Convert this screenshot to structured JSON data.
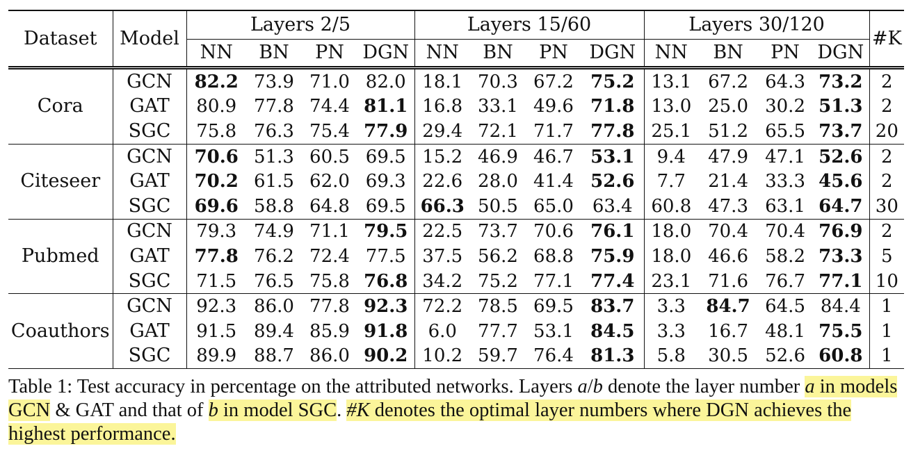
{
  "headers": {
    "dataset": "Dataset",
    "model": "Model",
    "k": "#K",
    "groups": [
      "Layers 2/5",
      "Layers 15/60",
      "Layers 30/120"
    ],
    "methods": [
      "NN",
      "BN",
      "PN",
      "DGN"
    ]
  },
  "datasets": [
    {
      "name": "Cora",
      "rows": [
        {
          "model": "GCN",
          "values": [
            "82.2",
            "73.9",
            "71.0",
            "82.0",
            "18.1",
            "70.3",
            "67.2",
            "75.2",
            "13.1",
            "67.2",
            "64.3",
            "73.2"
          ],
          "bold": [
            0,
            7,
            11
          ],
          "k": "2"
        },
        {
          "model": "GAT",
          "values": [
            "80.9",
            "77.8",
            "74.4",
            "81.1",
            "16.8",
            "33.1",
            "49.6",
            "71.8",
            "13.0",
            "25.0",
            "30.2",
            "51.3"
          ],
          "bold": [
            3,
            7,
            11
          ],
          "k": "2"
        },
        {
          "model": "SGC",
          "values": [
            "75.8",
            "76.3",
            "75.4",
            "77.9",
            "29.4",
            "72.1",
            "71.7",
            "77.8",
            "25.1",
            "51.2",
            "65.5",
            "73.7"
          ],
          "bold": [
            3,
            7,
            11
          ],
          "k": "20"
        }
      ]
    },
    {
      "name": "Citeseer",
      "rows": [
        {
          "model": "GCN",
          "values": [
            "70.6",
            "51.3",
            "60.5",
            "69.5",
            "15.2",
            "46.9",
            "46.7",
            "53.1",
            "9.4",
            "47.9",
            "47.1",
            "52.6"
          ],
          "bold": [
            0,
            7,
            11
          ],
          "k": "2"
        },
        {
          "model": "GAT",
          "values": [
            "70.2",
            "61.5",
            "62.0",
            "69.3",
            "22.6",
            "28.0",
            "41.4",
            "52.6",
            "7.7",
            "21.4",
            "33.3",
            "45.6"
          ],
          "bold": [
            0,
            7,
            11
          ],
          "k": "2"
        },
        {
          "model": "SGC",
          "values": [
            "69.6",
            "58.8",
            "64.8",
            "69.5",
            "66.3",
            "50.5",
            "65.0",
            "63.4",
            "60.8",
            "47.3",
            "63.1",
            "64.7"
          ],
          "bold": [
            0,
            4,
            11
          ],
          "k": "30"
        }
      ]
    },
    {
      "name": "Pubmed",
      "rows": [
        {
          "model": "GCN",
          "values": [
            "79.3",
            "74.9",
            "71.1",
            "79.5",
            "22.5",
            "73.7",
            "70.6",
            "76.1",
            "18.0",
            "70.4",
            "70.4",
            "76.9"
          ],
          "bold": [
            3,
            7,
            11
          ],
          "k": "2"
        },
        {
          "model": "GAT",
          "values": [
            "77.8",
            "76.2",
            "72.4",
            "77.5",
            "37.5",
            "56.2",
            "68.8",
            "75.9",
            "18.0",
            "46.6",
            "58.2",
            "73.3"
          ],
          "bold": [
            0,
            7,
            11
          ],
          "k": "5"
        },
        {
          "model": "SGC",
          "values": [
            "71.5",
            "76.5",
            "75.8",
            "76.8",
            "34.2",
            "75.2",
            "77.1",
            "77.4",
            "23.1",
            "71.6",
            "76.7",
            "77.1"
          ],
          "bold": [
            3,
            7,
            11
          ],
          "k": "10"
        }
      ]
    },
    {
      "name": "Coauthors",
      "rows": [
        {
          "model": "GCN",
          "values": [
            "92.3",
            "86.0",
            "77.8",
            "92.3",
            "72.2",
            "78.5",
            "69.5",
            "83.7",
            "3.3",
            "84.7",
            "64.5",
            "84.4"
          ],
          "bold": [
            3,
            7,
            9
          ],
          "k": "1"
        },
        {
          "model": "GAT",
          "values": [
            "91.5",
            "89.4",
            "85.9",
            "91.8",
            "6.0",
            "77.7",
            "53.1",
            "84.5",
            "3.3",
            "16.7",
            "48.1",
            "75.5"
          ],
          "bold": [
            3,
            7,
            11
          ],
          "k": "1"
        },
        {
          "model": "SGC",
          "values": [
            "89.9",
            "88.7",
            "86.0",
            "90.2",
            "10.2",
            "59.7",
            "76.4",
            "81.3",
            "5.8",
            "30.5",
            "52.6",
            "60.8"
          ],
          "bold": [
            3,
            7,
            11
          ],
          "k": "1"
        }
      ]
    }
  ],
  "caption": {
    "p1": "Table 1: Test accuracy in percentage on the attributed networks. Layers ",
    "m1": "a",
    "slash": "/",
    "m2": "b",
    "p2": " denote the layer number ",
    "m3": "a",
    "p3": " in models GCN",
    "p4": " & GAT and that of ",
    "m4": "b",
    "p5": " in model SGC",
    "p6": ". ",
    "m5": "#K",
    "p7": " denotes the optimal layer numbers where DGN achieves the highest performance."
  },
  "colors": {
    "highlight": "#fbf59a",
    "rule": "#111111"
  }
}
